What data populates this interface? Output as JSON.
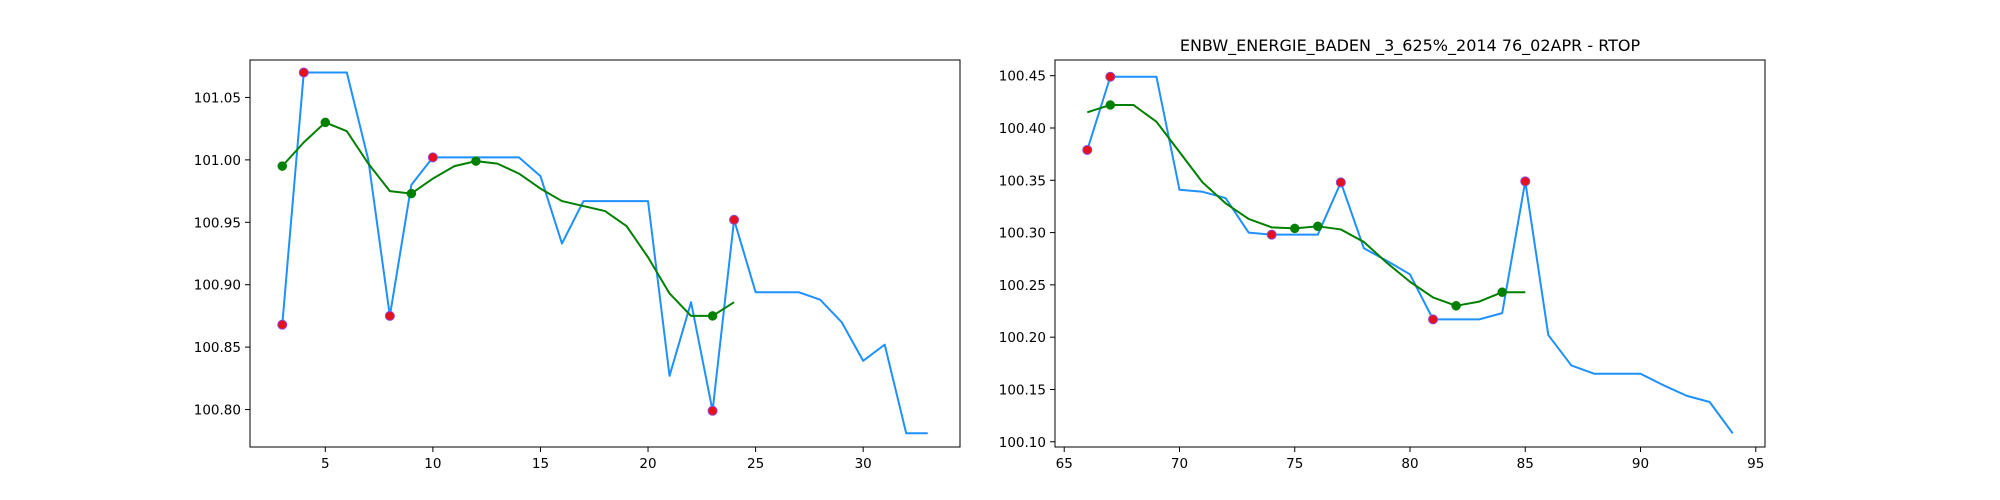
{
  "colors": {
    "price_line": "#1e90ff",
    "smooth_line": "#008000",
    "extrema_marker": "#e8101a",
    "extrema_marker_edge": "#8a4bd8",
    "smooth_marker": "#008000"
  },
  "chart_data": [
    {
      "type": "line",
      "title": "",
      "xlabel": "",
      "ylabel": "",
      "xlim": [
        1.5,
        34.5
      ],
      "ylim": [
        100.77,
        101.08
      ],
      "xticks": [
        5,
        10,
        15,
        20,
        25,
        30
      ],
      "yticks": [
        100.8,
        100.85,
        100.9,
        100.95,
        101.0,
        101.05
      ],
      "ytick_decimals": 2,
      "grid": false,
      "series": [
        {
          "kind": "line",
          "color": "#1e90ff",
          "x": [
            3,
            4,
            5,
            6,
            7,
            8,
            9,
            10,
            11,
            12,
            13,
            14,
            15,
            16,
            17,
            18,
            19,
            20,
            21,
            22,
            23,
            24,
            25,
            26,
            27,
            28,
            29,
            30,
            31,
            32,
            33
          ],
          "y": [
            100.868,
            101.07,
            101.07,
            101.07,
            101.0,
            100.875,
            100.98,
            101.002,
            101.002,
            101.002,
            101.002,
            101.002,
            100.987,
            100.933,
            100.967,
            100.967,
            100.967,
            100.967,
            100.827,
            100.886,
            100.799,
            100.952,
            100.894,
            100.894,
            100.894,
            100.888,
            100.87,
            100.839,
            100.852,
            100.781,
            100.781
          ]
        },
        {
          "kind": "line",
          "color": "#008000",
          "x": [
            3,
            4,
            5,
            6,
            7,
            8,
            9,
            10,
            11,
            12,
            13,
            14,
            15,
            16,
            17,
            18,
            19,
            20,
            21,
            22,
            23,
            24
          ],
          "y": [
            100.995,
            101.014,
            101.03,
            101.023,
            100.997,
            100.975,
            100.973,
            100.985,
            100.995,
            100.999,
            100.997,
            100.989,
            100.977,
            100.967,
            100.963,
            100.959,
            100.947,
            100.922,
            100.893,
            100.875,
            100.875,
            100.886
          ]
        },
        {
          "kind": "scatter",
          "color": "#e8101a",
          "x": [
            3,
            4,
            8,
            10,
            23,
            24
          ],
          "y": [
            100.868,
            101.07,
            100.875,
            101.002,
            100.799,
            100.952
          ]
        },
        {
          "kind": "scatter",
          "color": "#008000",
          "x": [
            3,
            5,
            9,
            12,
            23
          ],
          "y": [
            100.995,
            101.03,
            100.973,
            100.999,
            100.875
          ]
        }
      ]
    },
    {
      "type": "line",
      "title": "ENBW_ENERGIE_BADEN _3_625%_2014 76_02APR - RTOP",
      "xlabel": "",
      "ylabel": "",
      "xlim": [
        64.6,
        95.4
      ],
      "ylim": [
        100.095,
        100.465
      ],
      "xticks": [
        65,
        70,
        75,
        80,
        85,
        90,
        95
      ],
      "yticks": [
        100.1,
        100.15,
        100.2,
        100.25,
        100.3,
        100.35,
        100.4,
        100.45
      ],
      "ytick_decimals": 2,
      "grid": false,
      "series": [
        {
          "kind": "line",
          "color": "#1e90ff",
          "x": [
            66,
            67,
            68,
            69,
            70,
            71,
            72,
            73,
            74,
            75,
            76,
            77,
            78,
            79,
            80,
            81,
            82,
            83,
            84,
            85,
            86,
            87,
            88,
            89,
            90,
            91,
            92,
            93,
            94
          ],
          "y": [
            100.379,
            100.449,
            100.449,
            100.449,
            100.341,
            100.339,
            100.333,
            100.3,
            100.298,
            100.298,
            100.298,
            100.348,
            100.285,
            100.273,
            100.26,
            100.217,
            100.217,
            100.217,
            100.223,
            100.349,
            100.202,
            100.173,
            100.165,
            100.165,
            100.165,
            100.154,
            100.144,
            100.138,
            100.108
          ]
        },
        {
          "kind": "line",
          "color": "#008000",
          "x": [
            66,
            67,
            68,
            69,
            70,
            71,
            72,
            73,
            74,
            75,
            76,
            77,
            78,
            79,
            80,
            81,
            82,
            83,
            84,
            85
          ],
          "y": [
            100.415,
            100.422,
            100.422,
            100.406,
            100.377,
            100.348,
            100.328,
            100.313,
            100.305,
            100.304,
            100.306,
            100.303,
            100.291,
            100.271,
            100.253,
            100.238,
            100.23,
            100.234,
            100.243,
            100.243
          ]
        },
        {
          "kind": "scatter",
          "color": "#e8101a",
          "x": [
            66,
            67,
            74,
            77,
            81,
            85
          ],
          "y": [
            100.379,
            100.449,
            100.298,
            100.348,
            100.217,
            100.349
          ]
        },
        {
          "kind": "scatter",
          "color": "#008000",
          "x": [
            67,
            75,
            76,
            82,
            84
          ],
          "y": [
            100.422,
            100.304,
            100.306,
            100.23,
            100.243
          ]
        }
      ]
    }
  ]
}
